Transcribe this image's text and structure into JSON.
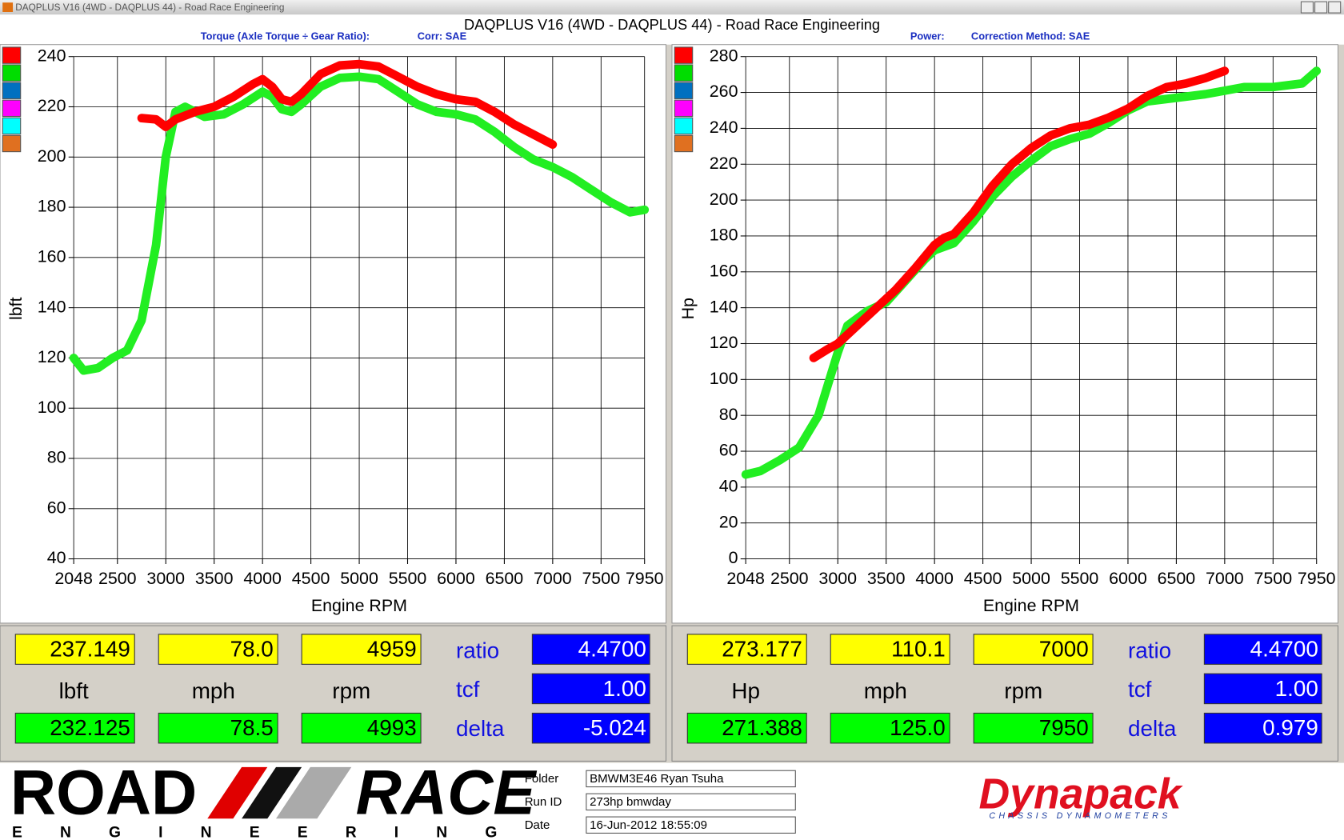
{
  "window": {
    "title": "DAQPLUS V16 (4WD - DAQPLUS 44) - Road Race Engineering"
  },
  "chart_header": "DAQPLUS V16 (4WD - DAQPLUS 44) - Road Race Engineering",
  "chart_data": [
    {
      "type": "line",
      "subtitle": "Torque (Axle Torque ÷ Gear Ratio):",
      "correction": "Corr: SAE",
      "x_label": "Engine RPM",
      "y_label": "lbft",
      "xlim": [
        2048,
        7950
      ],
      "xticks": [
        2048,
        2500,
        3000,
        3500,
        4000,
        4500,
        5000,
        5500,
        6000,
        6500,
        7000,
        7500,
        7950
      ],
      "ylim": [
        40,
        240
      ],
      "yticks": [
        40,
        60,
        80,
        100,
        120,
        140,
        160,
        180,
        200,
        220,
        240
      ],
      "grid": true,
      "legend_colors": [
        "#ff0000",
        "#00dd00",
        "#0070c0",
        "#ff00ff",
        "#00ffff",
        "#e07020"
      ],
      "series": [
        {
          "color": "#ff0000",
          "x": [
            2750,
            2900,
            3000,
            3100,
            3300,
            3500,
            3700,
            3900,
            4000,
            4100,
            4200,
            4300,
            4400,
            4600,
            4800,
            5000,
            5200,
            5400,
            5600,
            5800,
            6000,
            6200,
            6400,
            6600,
            6800,
            7000
          ],
          "values": [
            215.5,
            215,
            212,
            215,
            218,
            220,
            224,
            229,
            231,
            228,
            223,
            222,
            225,
            233,
            236.5,
            237,
            236,
            232,
            228,
            225,
            223,
            222,
            218,
            213,
            209,
            205
          ]
        },
        {
          "color": "#22ee22",
          "x": [
            2048,
            2150,
            2300,
            2450,
            2600,
            2750,
            2900,
            3000,
            3100,
            3200,
            3400,
            3600,
            3800,
            4000,
            4100,
            4200,
            4300,
            4400,
            4600,
            4800,
            5000,
            5200,
            5400,
            5600,
            5800,
            6000,
            6200,
            6400,
            6600,
            6800,
            7000,
            7200,
            7400,
            7600,
            7800,
            7950
          ],
          "values": [
            120,
            115,
            116,
            120,
            123,
            135,
            165,
            200,
            218,
            220,
            216,
            217,
            221,
            226,
            224,
            219,
            218,
            221,
            228,
            231.5,
            232,
            231,
            226,
            221,
            218,
            217,
            215,
            210,
            204,
            199,
            196,
            192,
            187,
            182,
            178,
            179
          ]
        }
      ]
    },
    {
      "type": "line",
      "subtitle": "Power:",
      "correction": "Correction Method: SAE",
      "x_label": "Engine RPM",
      "y_label": "Hp",
      "xlim": [
        2048,
        7950
      ],
      "xticks": [
        2048,
        2500,
        3000,
        3500,
        4000,
        4500,
        5000,
        5500,
        6000,
        6500,
        7000,
        7500,
        7950
      ],
      "ylim": [
        0,
        280
      ],
      "yticks": [
        0,
        20,
        40,
        60,
        80,
        100,
        120,
        140,
        160,
        180,
        200,
        220,
        240,
        260,
        280
      ],
      "grid": true,
      "legend_colors": [
        "#ff0000",
        "#00dd00",
        "#0070c0",
        "#ff00ff",
        "#00ffff",
        "#e07020"
      ],
      "series": [
        {
          "color": "#ff0000",
          "x": [
            2750,
            2900,
            3000,
            3200,
            3400,
            3600,
            3800,
            4000,
            4100,
            4200,
            4400,
            4600,
            4800,
            5000,
            5200,
            5400,
            5600,
            5800,
            6000,
            6200,
            6400,
            6600,
            6800,
            7000
          ],
          "values": [
            112,
            117,
            120,
            130,
            140,
            150,
            162,
            175,
            179,
            181,
            193,
            208,
            220,
            229,
            236,
            240,
            242,
            246,
            251,
            258,
            263,
            265,
            268,
            272
          ]
        },
        {
          "color": "#22ee22",
          "x": [
            2048,
            2200,
            2400,
            2600,
            2800,
            3000,
            3100,
            3300,
            3500,
            3700,
            3900,
            4000,
            4200,
            4400,
            4600,
            4800,
            5000,
            5200,
            5400,
            5600,
            5800,
            6000,
            6200,
            6500,
            6800,
            7000,
            7200,
            7500,
            7800,
            7950
          ],
          "values": [
            47,
            49,
            55,
            62,
            80,
            115,
            130,
            138,
            143,
            155,
            167,
            172,
            176,
            188,
            202,
            213,
            222,
            230,
            234,
            237,
            243,
            250,
            255,
            257,
            259,
            261,
            263,
            263,
            265,
            272
          ]
        }
      ]
    }
  ],
  "readouts": [
    {
      "top": [
        "237.149",
        "78.0",
        "4959"
      ],
      "units": [
        "lbft",
        "mph",
        "rpm"
      ],
      "bottom": [
        "232.125",
        "78.5",
        "4993"
      ],
      "labels": [
        "ratio",
        "tcf",
        "delta"
      ],
      "settings": [
        "4.4700",
        "1.00",
        "-5.024"
      ]
    },
    {
      "top": [
        "273.177",
        "110.1",
        "7000"
      ],
      "units": [
        "Hp",
        "mph",
        "rpm"
      ],
      "bottom": [
        "271.388",
        "125.0",
        "7950"
      ],
      "labels": [
        "ratio",
        "tcf",
        "delta"
      ],
      "settings": [
        "4.4700",
        "1.00",
        "0.979"
      ]
    }
  ],
  "run_info": {
    "labels": [
      "Folder",
      "Run ID",
      "Date"
    ],
    "values": [
      "BMWM3E46 Ryan Tsuha",
      "273hp bmwday",
      "16-Jun-2012  18:55:09"
    ]
  },
  "logos": {
    "left": [
      "ROAD",
      "RACE",
      "ENGINEERING"
    ],
    "right": [
      "Dynapack",
      "CHASSIS DYNAMOMETERS"
    ]
  }
}
